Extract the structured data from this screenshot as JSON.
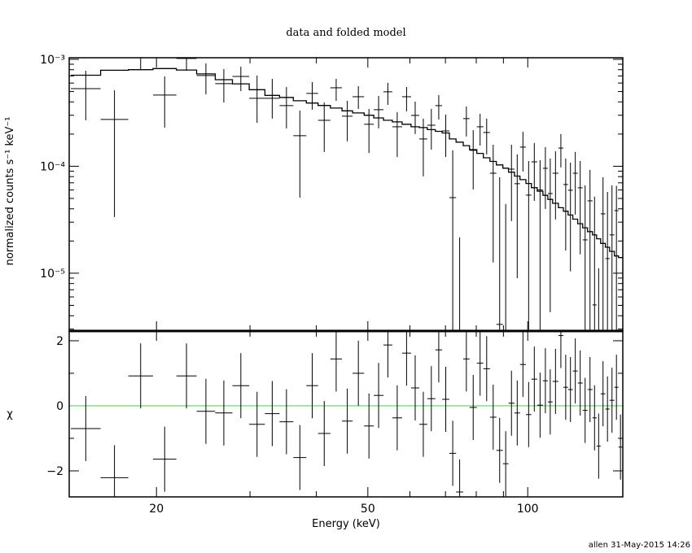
{
  "chart_data": [
    {
      "type": "scatter",
      "panel": "upper",
      "title": "data and folded model",
      "ylabel": "normalized counts s⁻¹ keV⁻¹",
      "xscale": "log",
      "yscale": "log",
      "xlim": [
        13.7,
        151
      ],
      "ylim": [
        2.88e-06,
        0.001035
      ],
      "yticks": [
        {
          "value": 0.001,
          "label": "10⁻³"
        },
        {
          "value": 0.0001,
          "label": "10⁻⁴"
        },
        {
          "value": 1e-05,
          "label": "10⁻⁵"
        }
      ],
      "grid": false,
      "series_style": {
        "data": "crosses with error bars",
        "model": "step histogram"
      }
    },
    {
      "type": "scatter",
      "panel": "lower",
      "xlabel": "Energy (keV)",
      "ylabel": "χ",
      "xscale": "log",
      "xlim": [
        13.7,
        151
      ],
      "ylim": [
        -2.8,
        2.3
      ],
      "xticks": [
        {
          "value": 20,
          "label": "20"
        },
        {
          "value": 50,
          "label": "50"
        },
        {
          "value": 100,
          "label": "100"
        }
      ],
      "yticks": [
        {
          "value": 2,
          "label": "2"
        },
        {
          "value": 0,
          "label": "0"
        },
        {
          "value": -2,
          "label": "−2"
        }
      ],
      "chi_err": 1,
      "zero_line_color": "#44cc44",
      "grid": false
    }
  ],
  "points": {
    "columns": [
      "e_lo",
      "e_hi",
      "rate",
      "rate_lo",
      "rate_hi",
      "model",
      "chi"
    ],
    "rows": [
      [
        13.8,
        15.7,
        0.000532,
        0.000269,
        0.000783,
        0.00071,
        -0.7
      ],
      [
        15.7,
        17.7,
        0.000274,
        3.35e-05,
        0.000514,
        0.00079,
        -2.21
      ],
      [
        17.7,
        19.7,
        0.00107,
        0.00081,
        0.0013,
        0.0008,
        0.92
      ],
      [
        19.7,
        21.8,
        0.000463,
        0.00023,
        0.000692,
        0.00082,
        -1.64
      ],
      [
        21.8,
        23.8,
        0.00102,
        0.000783,
        0.00125,
        0.000795,
        0.92
      ],
      [
        23.8,
        25.8,
        0.000705,
        0.000471,
        0.000916,
        0.00073,
        -0.17
      ],
      [
        25.8,
        27.8,
        0.000592,
        0.000395,
        0.000811,
        0.000645,
        -0.22
      ],
      [
        27.8,
        29.9,
        0.000692,
        0.000505,
        0.000855,
        0.00059,
        0.62
      ],
      [
        29.9,
        32.0,
        0.000432,
        0.000255,
        0.000705,
        0.00052,
        -0.57
      ],
      [
        32.0,
        34.1,
        0.000432,
        0.000279,
        0.000657,
        0.00046,
        -0.24
      ],
      [
        34.1,
        36.2,
        0.000369,
        0.000226,
        0.000551,
        0.00044,
        -0.49
      ],
      [
        36.2,
        38.3,
        0.000193,
        5.09e-05,
        0.000332,
        0.00041,
        -1.59
      ],
      [
        38.3,
        40.3,
        0.00048,
        0.000338,
        0.000612,
        0.00039,
        0.62
      ],
      [
        40.3,
        42.5,
        0.000269,
        0.000136,
        0.000395,
        0.00037,
        -0.85
      ],
      [
        42.5,
        44.7,
        0.000542,
        0.000409,
        0.000657,
        0.00035,
        1.44
      ],
      [
        44.7,
        46.8,
        0.000294,
        0.000171,
        0.000409,
        0.00033,
        -0.47
      ],
      [
        46.8,
        49.2,
        0.000447,
        0.000344,
        0.000561,
        0.000315,
        1.0
      ],
      [
        49.2,
        51.3,
        0.000247,
        0.000133,
        0.000344,
        0.0003,
        -0.62
      ],
      [
        51.3,
        53.5,
        0.000338,
        0.000226,
        0.000455,
        0.000283,
        0.32
      ],
      [
        53.5,
        55.6,
        0.000497,
        0.000375,
        0.000602,
        0.000269,
        1.87
      ],
      [
        55.6,
        58.0,
        0.000234,
        0.000122,
        0.000321,
        0.00026,
        -0.37
      ],
      [
        58.0,
        60.3,
        0.000447,
        0.000326,
        0.000551,
        0.000247,
        1.62
      ],
      [
        60.3,
        62.5,
        0.000299,
        0.0002,
        0.000403,
        0.000234,
        0.55
      ],
      [
        62.5,
        64.7,
        0.00018,
        8.04e-05,
        0.000279,
        0.00023,
        -0.57
      ],
      [
        64.7,
        67.0,
        0.000242,
        0.000143,
        0.000344,
        0.00022,
        0.22
      ],
      [
        67.0,
        69.0,
        0.000369,
        0.000274,
        0.000463,
        0.000212,
        1.72
      ],
      [
        69.0,
        71.2,
        0.000214,
        0.000122,
        0.000304,
        0.000205,
        0.2
      ],
      [
        71.2,
        73.3,
        5.09e-05,
        0,
        0.000141,
        0.00018,
        -1.46
      ],
      [
        73.3,
        75.6,
        0,
        0,
        2.16e-05,
        0.000168,
        -2.65
      ],
      [
        75.6,
        77.7,
        0.000279,
        0.00019,
        0.000362,
        0.000156,
        1.44
      ],
      [
        77.7,
        80.2,
        0.000141,
        6.07e-05,
        0.000218,
        0.000143,
        -0.05
      ],
      [
        80.2,
        82.5,
        0.000234,
        0.000156,
        0.000309,
        0.000132,
        1.31
      ],
      [
        82.5,
        84.9,
        0.000207,
        0.000129,
        0.000279,
        0.00012,
        1.14
      ],
      [
        84.9,
        87.3,
        8.61e-05,
        1.26e-05,
        0.000159,
        0.000111,
        -0.35
      ],
      [
        87.3,
        89.8,
        3.32e-06,
        0,
        7.89e-05,
        0.000103,
        -1.37
      ],
      [
        89.8,
        92.0,
        0,
        0,
        4.43e-05,
        9.6e-05,
        -1.78
      ],
      [
        92.0,
        94.4,
        9.4e-05,
        3.07e-05,
        0.000159,
        8.8e-05,
        0.08
      ],
      [
        94.4,
        96.7,
        6.87e-05,
        9e-06,
        0.000129,
        8.1e-05,
        -0.22
      ],
      [
        96.7,
        99.2,
        0.000151,
        8.93e-05,
        0.00021,
        7.5e-05,
        1.27
      ],
      [
        99.2,
        101.6,
        5.37e-05,
        0,
        0.000112,
        6.9e-05,
        -0.27
      ],
      [
        101.6,
        104.2,
        0.00011,
        4.75e-05,
        0.000165,
        6.3e-05,
        0.82
      ],
      [
        104.2,
        106.8,
        6e-05,
        0,
        0.000114,
        5.85e-05,
        0.02
      ],
      [
        106.8,
        109.1,
        9.57e-05,
        3.99e-05,
        0.000151,
        5.35e-05,
        0.77
      ],
      [
        109.1,
        111.4,
        5.56e-05,
        4.32e-06,
        0.000118,
        4.9e-05,
        0.12
      ],
      [
        111.4,
        114.2,
        8.61e-05,
        3.18e-05,
        0.000138,
        4.5e-05,
        0.75
      ],
      [
        114.2,
        116.7,
        0.000148,
        9.75e-05,
        0.0002,
        4.1e-05,
        2.16
      ],
      [
        116.7,
        119.1,
        6.75e-05,
        1.63e-05,
        0.000118,
        3.8e-05,
        0.57
      ],
      [
        119.1,
        121.6,
        5.97e-05,
        1.04e-05,
        0.000108,
        3.5e-05,
        0.5
      ],
      [
        121.6,
        124.2,
        8.61e-05,
        3.53e-05,
        0.000136,
        3.2e-05,
        1.07
      ],
      [
        124.2,
        126.9,
        6.29e-05,
        1.5e-05,
        0.000112,
        2.9e-05,
        0.7
      ],
      [
        126.9,
        129.6,
        2.05e-05,
        0,
        6.62e-05,
        2.66e-05,
        -0.14
      ],
      [
        129.6,
        132.4,
        4.75e-05,
        0,
        9.25e-05,
        2.45e-05,
        0.5
      ],
      [
        132.4,
        134.8,
        5.05e-06,
        0,
        5.19e-05,
        2.28e-05,
        -0.37
      ],
      [
        134.8,
        137.2,
        0,
        0,
        1.11e-05,
        2.1e-05,
        -1.24
      ],
      [
        137.2,
        140.0,
        3.59e-05,
        0,
        7.89e-05,
        1.9e-05,
        0.37
      ],
      [
        140.0,
        142.6,
        1.37e-05,
        0,
        5.76e-05,
        1.75e-05,
        -0.1
      ],
      [
        142.6,
        145.6,
        2.28e-05,
        0,
        6.62e-05,
        1.6e-05,
        0.17
      ],
      [
        145.6,
        148.2,
        3.85e-05,
        0,
        6.56e-05,
        1.45e-05,
        0.57
      ],
      [
        148.2,
        150.8,
        0,
        0,
        0,
        1.4e-05,
        -1.27
      ]
    ]
  },
  "footer": "allen 31-May-2015 14:26"
}
